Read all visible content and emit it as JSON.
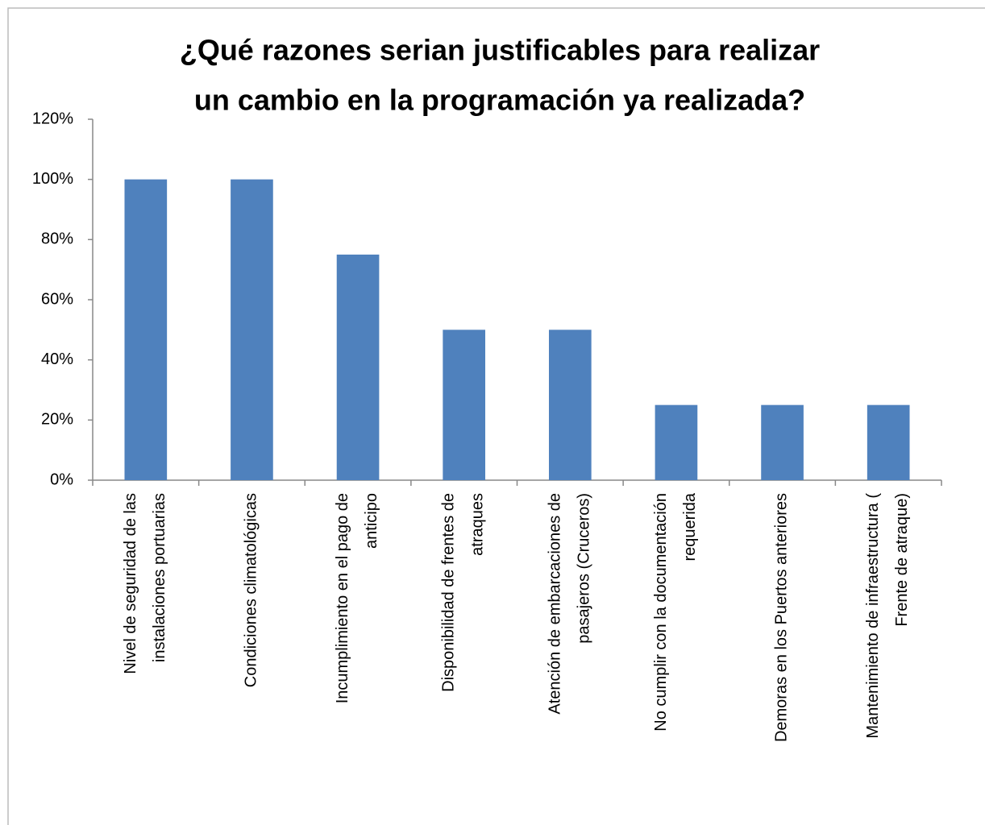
{
  "chart_data": {
    "type": "bar",
    "title": [
      "¿Qué razones serian justificables para realizar",
      "un cambio en la programación ya realizada?"
    ],
    "categories": [
      "Nivel de seguridad de las\ninstalaciones portuarias",
      "Condiciones climatológicas",
      "Incumplimiento en el pago de\nanticipo",
      "Disponibilidad de frentes de\natraques",
      "Atención de embarcaciones de\npasajeros (Cruceros)",
      "No cumplir con la documentación\nrequerida",
      "Demoras en los Puertos anteriores",
      "Mantenimiento de infraestructura (\nFrente de atraque)"
    ],
    "values": [
      100,
      100,
      75,
      50,
      50,
      25,
      25,
      25
    ],
    "color": "#4f81bd",
    "ylim": [
      0,
      120
    ],
    "yticks": [
      {
        "value": 0,
        "label": "0%"
      },
      {
        "value": 20,
        "label": "20%"
      },
      {
        "value": 40,
        "label": "40%"
      },
      {
        "value": 60,
        "label": "60%"
      },
      {
        "value": 80,
        "label": "80%"
      },
      {
        "value": 100,
        "label": "100%"
      },
      {
        "value": 120,
        "label": "120%"
      }
    ],
    "grid": false
  }
}
